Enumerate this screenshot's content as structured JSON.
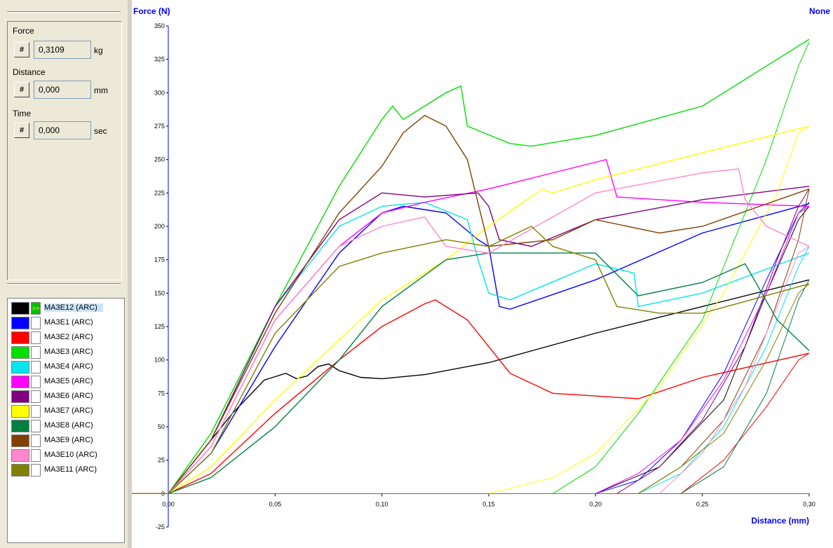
{
  "readouts": {
    "force": {
      "label": "Force",
      "button": "#",
      "value": "0,3109",
      "unit": "kg"
    },
    "distance": {
      "label": "Distance",
      "button": "#",
      "value": "0,000",
      "unit": "mm"
    },
    "time": {
      "label": "Time",
      "button": "#",
      "value": "0,000",
      "unit": "sec"
    }
  },
  "legend": {
    "items": [
      {
        "name": "MA3E12 (ARC)",
        "color": "#000000",
        "active": true,
        "marker": ">>"
      },
      {
        "name": "MA3E1 (ARC)",
        "color": "#0000ff"
      },
      {
        "name": "MA3E2 (ARC)",
        "color": "#ff0000"
      },
      {
        "name": "MA3E3 (ARC)",
        "color": "#00e000"
      },
      {
        "name": "MA3E4 (ARC)",
        "color": "#00e5ee"
      },
      {
        "name": "MA3E5 (ARC)",
        "color": "#ff00ff"
      },
      {
        "name": "MA3E6 (ARC)",
        "color": "#800080"
      },
      {
        "name": "MA3E7 (ARC)",
        "color": "#ffff00"
      },
      {
        "name": "MA3E8 (ARC)",
        "color": "#008040"
      },
      {
        "name": "MA3E9 (ARC)",
        "color": "#804000"
      },
      {
        "name": "MA3E10 (ARC)",
        "color": "#ff88cc"
      },
      {
        "name": "MA3E11 (ARC)",
        "color": "#808000"
      }
    ]
  },
  "chart_data": {
    "type": "line",
    "title": "",
    "ylabel": "Force (N)",
    "xlabel": "Distance (mm)",
    "top_right_label": "None",
    "xlim": [
      0,
      0.3
    ],
    "ylim": [
      -25,
      350
    ],
    "xticks": [
      "0,00",
      "0,05",
      "0,10",
      "0,15",
      "0,20",
      "0,25",
      "0,30"
    ],
    "yticks": [
      "-25",
      "0",
      "25",
      "50",
      "75",
      "100",
      "125",
      "150",
      "175",
      "200",
      "225",
      "250",
      "275",
      "300",
      "325",
      "350"
    ],
    "grid": false,
    "series": [
      {
        "name": "MA3E12 (ARC)",
        "color": "#000000",
        "x": [
          0,
          0.01,
          0.03,
          0.045,
          0.055,
          0.06,
          0.065,
          0.07,
          0.075,
          0.08,
          0.09,
          0.1,
          0.12,
          0.15,
          0.2,
          0.25,
          0.3
        ],
        "y": [
          0,
          20,
          60,
          85,
          90,
          86,
          88,
          95,
          97,
          92,
          87,
          86,
          89,
          98,
          120,
          140,
          160
        ],
        "return": {
          "x": [
            0.2,
            0.23,
            0.26,
            0.28,
            0.295,
            0.3
          ],
          "y": [
            0,
            20,
            70,
            150,
            205,
            215
          ]
        }
      },
      {
        "name": "MA3E1 (ARC)",
        "color": "#0000ff",
        "x": [
          0,
          0.02,
          0.05,
          0.08,
          0.1,
          0.11,
          0.13,
          0.145,
          0.15,
          0.155,
          0.16,
          0.2,
          0.25,
          0.3
        ],
        "y": [
          0,
          30,
          110,
          180,
          210,
          215,
          210,
          190,
          185,
          140,
          138,
          160,
          195,
          217
        ],
        "return": {
          "x": [
            0.2,
            0.22,
            0.24,
            0.26,
            0.28,
            0.295,
            0.3
          ],
          "y": [
            0,
            10,
            40,
            90,
            160,
            210,
            218
          ]
        }
      },
      {
        "name": "MA3E2 (ARC)",
        "color": "#ff0000",
        "x": [
          0,
          0.02,
          0.05,
          0.08,
          0.1,
          0.12,
          0.125,
          0.14,
          0.16,
          0.18,
          0.2,
          0.22,
          0.25,
          0.3
        ],
        "y": [
          0,
          15,
          60,
          100,
          125,
          142,
          145,
          130,
          90,
          75,
          73,
          71,
          87,
          105
        ],
        "return": {
          "x": [
            0.24,
            0.26,
            0.28,
            0.295,
            0.3
          ],
          "y": [
            0,
            25,
            65,
            100,
            105
          ]
        }
      },
      {
        "name": "MA3E3 (ARC)",
        "color": "#00e000",
        "x": [
          0,
          0.02,
          0.05,
          0.08,
          0.1,
          0.105,
          0.11,
          0.13,
          0.137,
          0.14,
          0.16,
          0.17,
          0.2,
          0.25,
          0.3
        ],
        "y": [
          0,
          45,
          140,
          230,
          280,
          290,
          280,
          300,
          305,
          275,
          262,
          260,
          268,
          290,
          340
        ],
        "return": {
          "x": [
            0.18,
            0.2,
            0.22,
            0.25,
            0.28,
            0.295,
            0.3
          ],
          "y": [
            0,
            20,
            60,
            130,
            250,
            320,
            338
          ]
        }
      },
      {
        "name": "MA3E4 (ARC)",
        "color": "#00e5ee",
        "x": [
          0,
          0.02,
          0.05,
          0.08,
          0.1,
          0.12,
          0.14,
          0.145,
          0.15,
          0.16,
          0.2,
          0.218,
          0.22,
          0.25,
          0.3
        ],
        "y": [
          0,
          40,
          140,
          200,
          215,
          218,
          205,
          175,
          150,
          145,
          172,
          165,
          140,
          150,
          180
        ],
        "return": {
          "x": [
            0.22,
            0.24,
            0.26,
            0.28,
            0.295,
            0.3
          ],
          "y": [
            0,
            15,
            50,
            110,
            170,
            185
          ]
        }
      },
      {
        "name": "MA3E5 (ARC)",
        "color": "#ff00ff",
        "x": [
          0,
          0.02,
          0.05,
          0.08,
          0.1,
          0.12,
          0.15,
          0.2,
          0.205,
          0.21,
          0.25,
          0.3
        ],
        "y": [
          0,
          35,
          130,
          185,
          210,
          218,
          228,
          248,
          250,
          222,
          218,
          215
        ],
        "return": {
          "x": [
            0.2,
            0.22,
            0.24,
            0.26,
            0.28,
            0.295,
            0.3
          ],
          "y": [
            0,
            15,
            40,
            85,
            150,
            210,
            215
          ]
        }
      },
      {
        "name": "MA3E6 (ARC)",
        "color": "#800080",
        "x": [
          0,
          0.02,
          0.05,
          0.08,
          0.1,
          0.12,
          0.145,
          0.15,
          0.155,
          0.17,
          0.2,
          0.25,
          0.3
        ],
        "y": [
          0,
          40,
          140,
          205,
          225,
          222,
          225,
          215,
          190,
          185,
          205,
          220,
          230
        ],
        "return": {
          "x": [
            0.21,
            0.23,
            0.25,
            0.27,
            0.285,
            0.295,
            0.3
          ],
          "y": [
            0,
            20,
            55,
            110,
            175,
            215,
            228
          ]
        }
      },
      {
        "name": "MA3E7 (ARC)",
        "color": "#ffff00",
        "x": [
          0,
          0.02,
          0.05,
          0.08,
          0.1,
          0.13,
          0.15,
          0.175,
          0.18,
          0.2,
          0.25,
          0.3
        ],
        "y": [
          0,
          20,
          70,
          115,
          145,
          175,
          200,
          228,
          225,
          235,
          255,
          275
        ],
        "return": {
          "x": [
            0.15,
            0.18,
            0.2,
            0.23,
            0.26,
            0.285,
            0.295,
            0.3
          ],
          "y": [
            0,
            12,
            30,
            80,
            150,
            225,
            270,
            275
          ]
        }
      },
      {
        "name": "MA3E8 (ARC)",
        "color": "#008040",
        "x": [
          0,
          0.02,
          0.05,
          0.08,
          0.1,
          0.13,
          0.15,
          0.18,
          0.2,
          0.22,
          0.25,
          0.27,
          0.285,
          0.3
        ],
        "y": [
          0,
          12,
          50,
          100,
          140,
          175,
          180,
          180,
          180,
          148,
          158,
          172,
          130,
          107
        ],
        "return": {
          "x": [
            0.24,
            0.26,
            0.28,
            0.295,
            0.3
          ],
          "y": [
            0,
            20,
            75,
            145,
            160
          ]
        }
      },
      {
        "name": "MA3E9 (ARC)",
        "color": "#804000",
        "x": [
          0,
          0.02,
          0.05,
          0.08,
          0.1,
          0.11,
          0.12,
          0.13,
          0.14,
          0.15,
          0.18,
          0.2,
          0.23,
          0.25,
          0.3
        ],
        "y": [
          0,
          40,
          135,
          210,
          245,
          270,
          283,
          275,
          250,
          185,
          190,
          205,
          195,
          200,
          228
        ],
        "return": {
          "x": [
            0.22,
            0.24,
            0.26,
            0.28,
            0.295,
            0.3
          ],
          "y": [
            0,
            20,
            55,
            120,
            190,
            228
          ]
        }
      },
      {
        "name": "MA3E10 (ARC)",
        "color": "#ff88cc",
        "x": [
          0,
          0.02,
          0.05,
          0.08,
          0.1,
          0.12,
          0.13,
          0.15,
          0.2,
          0.25,
          0.267,
          0.27,
          0.28,
          0.3
        ],
        "y": [
          0,
          35,
          130,
          185,
          200,
          207,
          185,
          180,
          225,
          240,
          243,
          220,
          200,
          185
        ],
        "return": {
          "x": [
            0.23,
            0.25,
            0.27,
            0.285,
            0.295,
            0.3
          ],
          "y": [
            0,
            30,
            80,
            140,
            180,
            185
          ]
        }
      },
      {
        "name": "MA3E11 (ARC)",
        "color": "#808000",
        "x": [
          0,
          0.02,
          0.05,
          0.08,
          0.1,
          0.13,
          0.15,
          0.17,
          0.18,
          0.2,
          0.21,
          0.23,
          0.25,
          0.3
        ],
        "y": [
          0,
          30,
          120,
          170,
          180,
          190,
          185,
          200,
          185,
          175,
          140,
          135,
          135,
          157
        ],
        "return": {
          "x": [
            0.22,
            0.24,
            0.26,
            0.28,
            0.295,
            0.3
          ],
          "y": [
            0,
            20,
            45,
            100,
            150,
            157
          ]
        }
      }
    ]
  }
}
